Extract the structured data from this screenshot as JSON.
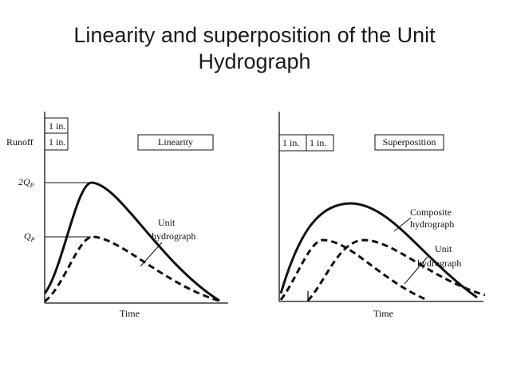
{
  "title": {
    "line1": "Linearity and superposition of the Unit",
    "line2": "Hydrograph"
  },
  "left_panel": {
    "ylabel": "Runoff",
    "xlabel": "Time",
    "box_label": "Linearity",
    "rain_box_top": "1 in.",
    "rain_box_bottom": "1 in.",
    "tick_2qp_main": "2Q",
    "tick_2qp_sub": "P",
    "tick_qp_main": "Q",
    "tick_qp_sub": "P",
    "annotation_line1": "Unit",
    "annotation_line2": "hydrograph"
  },
  "right_panel": {
    "xlabel": "Time",
    "box_label": "Superposition",
    "rain_box_1": "1 in.",
    "rain_box_2": "1 in.",
    "composite_line1": "Composite",
    "composite_line2": "hydrograph",
    "unit_line1": "Unit",
    "unit_line2": "hydrograph"
  },
  "colors": {
    "ink": "#111111",
    "title": "#1a1a1a"
  }
}
